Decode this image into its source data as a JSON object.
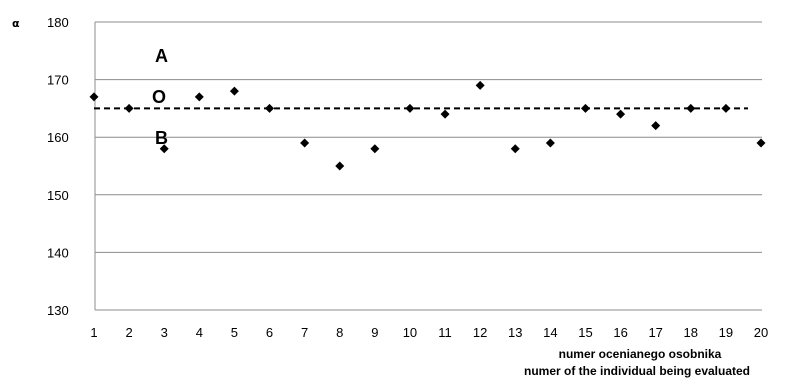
{
  "chart_data": {
    "type": "scatter",
    "ylabel": "α",
    "xlabel_lines": [
      "numer ocenianego osobnika",
      "numer of the individual  being evaluated"
    ],
    "x": [
      1,
      2,
      3,
      4,
      5,
      6,
      7,
      8,
      9,
      10,
      11,
      12,
      13,
      14,
      15,
      16,
      17,
      18,
      19,
      20
    ],
    "y": [
      167,
      165,
      158,
      167,
      168,
      165,
      159,
      155,
      158,
      165,
      164,
      169,
      158,
      159,
      165,
      164,
      162,
      165,
      165,
      159
    ],
    "ylim": [
      130,
      180
    ],
    "yticks": [
      130,
      140,
      150,
      160,
      170,
      180
    ],
    "xticks": [
      1,
      2,
      3,
      4,
      5,
      6,
      7,
      8,
      9,
      10,
      11,
      12,
      13,
      14,
      15,
      16,
      17,
      18,
      19,
      20
    ],
    "reference_line": {
      "y": 165,
      "style": "dashed"
    },
    "zone_labels": [
      "A",
      "O",
      "B"
    ],
    "grid": "horizontal",
    "legend": "none",
    "marker": "diamond",
    "colors": {
      "marker": "#000000",
      "grid": "#8c8c8c",
      "reference": "#000000"
    }
  }
}
